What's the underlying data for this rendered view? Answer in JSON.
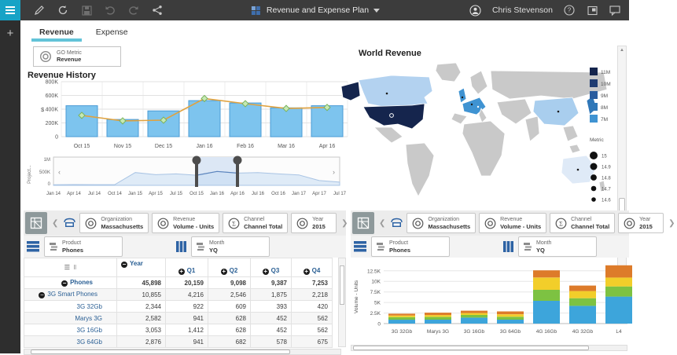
{
  "topbar": {
    "title": "Revenue and Expense Plan",
    "user_name": "Chris Stevenson",
    "icons": [
      "menu-icon",
      "edit-pencil-icon",
      "refresh-icon",
      "save-icon",
      "undo-icon",
      "redo-icon",
      "share-icon",
      "grid-icon",
      "caret-down-icon",
      "avatar-icon",
      "help-icon",
      "panel-icon",
      "chat-icon"
    ]
  },
  "rail": {
    "add_label": "+"
  },
  "tabs": [
    {
      "label": "Revenue",
      "active": true
    },
    {
      "label": "Expense",
      "active": false
    }
  ],
  "go_metric": {
    "label": "GO Metric",
    "value": "Revenue"
  },
  "world_map": {
    "title": "World Revenue",
    "legend": [
      {
        "label": "11M",
        "color": "#15254d"
      },
      {
        "label": "10M",
        "color": "#1f3c72"
      },
      {
        "label": "9M",
        "color": "#2a5d9f"
      },
      {
        "label": "8M",
        "color": "#2f77b8"
      },
      {
        "label": "7M",
        "color": "#3f93d2"
      }
    ],
    "metric_label": "Metric",
    "metric_dots": [
      "15",
      "14.9",
      "14.8",
      "14.7",
      "14.6"
    ],
    "region_colors": {
      "usa": "#15254d",
      "alaska": "#15254d",
      "canada": "#b3d2f0",
      "europe_highlight": "#3f93d2",
      "china": "#a9ceee",
      "japan": "#2f77b8",
      "australia": "#dfeaf7",
      "land": "#c9c9c9"
    }
  },
  "explorer": {
    "context_chips": [
      {
        "icon": "circle",
        "label": "Organization",
        "value": "Massachusetts"
      },
      {
        "icon": "circle",
        "label": "Revenue",
        "value": "Volume - Units"
      },
      {
        "icon": "sigma",
        "label": "Channel",
        "value": "Channel Total"
      },
      {
        "icon": "circle",
        "label": "Year",
        "value": "2015"
      }
    ],
    "rows_chip": {
      "label": "Product",
      "value": "Phones"
    },
    "cols_chip": {
      "label": "Month",
      "value": "YQ"
    },
    "overflow_label": "..."
  },
  "table": {
    "corner_icons": [
      "rows-handle-icon",
      "drag-divider-icon"
    ],
    "columns": [
      {
        "label": "Year",
        "expander": "-"
      },
      {
        "label": "Q1",
        "expander": "+"
      },
      {
        "label": "Q2",
        "expander": "+"
      },
      {
        "label": "Q3",
        "expander": "+"
      },
      {
        "label": "Q4",
        "expander": "+"
      }
    ],
    "rows": [
      {
        "name": "Phones",
        "level": 0,
        "expander": "-",
        "bold": true,
        "values": [
          "45,898",
          "20,159",
          "9,098",
          "9,387",
          "7,253"
        ]
      },
      {
        "name": "3G Smart Phones",
        "level": 1,
        "expander": "-",
        "bold": false,
        "values": [
          "10,855",
          "4,216",
          "2,546",
          "1,875",
          "2,218"
        ]
      },
      {
        "name": "3G 32Gb",
        "level": 2,
        "expander": "",
        "bold": false,
        "values": [
          "2,344",
          "922",
          "609",
          "393",
          "420"
        ]
      },
      {
        "name": "Marys 3G",
        "level": 2,
        "expander": "",
        "bold": false,
        "values": [
          "2,582",
          "941",
          "628",
          "452",
          "562"
        ]
      },
      {
        "name": "3G 16Gb",
        "level": 2,
        "expander": "",
        "bold": false,
        "values": [
          "3,053",
          "1,412",
          "628",
          "452",
          "562"
        ]
      },
      {
        "name": "3G 64Gb",
        "level": 2,
        "expander": "",
        "bold": false,
        "values": [
          "2,876",
          "941",
          "682",
          "578",
          "675"
        ]
      }
    ]
  },
  "chart_data": [
    {
      "id": "revenue_history",
      "type": "bar",
      "title": "Revenue History",
      "xlabel": "",
      "ylabel": "$",
      "categories": [
        "Oct 15",
        "Nov 15",
        "Dec 15",
        "Jan 16",
        "Feb 16",
        "Mar 16",
        "Apr 16"
      ],
      "yticks": [
        "0",
        "200K",
        "400K",
        "600K",
        "800K"
      ],
      "ylim": [
        0,
        800000
      ],
      "grid": true,
      "series": [
        {
          "name": "Revenue",
          "type": "bar",
          "color": "#7dc4ee",
          "stroke": "#4a9bd5",
          "values": [
            450000,
            250000,
            375000,
            525000,
            490000,
            420000,
            450000
          ]
        },
        {
          "name": "GO Metric",
          "type": "line",
          "color": "#e0a23f",
          "marker": "#c6e9b4",
          "values": [
            310000,
            230000,
            240000,
            555000,
            480000,
            410000,
            425000
          ]
        }
      ]
    },
    {
      "id": "time_slider",
      "type": "area",
      "title": "",
      "xlabel": "",
      "ylabel": "Project...",
      "yticks": [
        "0",
        "500K",
        "1M"
      ],
      "ylim": [
        0,
        1000000
      ],
      "x": [
        "Jan 14",
        "Apr 14",
        "Jul 14",
        "Oct 14",
        "Jan 15",
        "Apr 15",
        "Jul 15",
        "Oct 15",
        "Jan 16",
        "Apr 16",
        "Jul 16",
        "Oct 16",
        "Jan 17",
        "Apr 17",
        "Jul 17"
      ],
      "values": [
        20000,
        30000,
        25000,
        30000,
        480000,
        400000,
        430000,
        380000,
        520000,
        460000,
        480000,
        430000,
        390000,
        180000,
        120000
      ],
      "selection": [
        "Oct 15",
        "Apr 16"
      ],
      "color": "#aecdf0"
    },
    {
      "id": "volume_by_product",
      "type": "bar",
      "stacked": true,
      "title": "",
      "xlabel": "",
      "ylabel": "Volume - Units",
      "yticks": [
        "0",
        "2.5K",
        "5K",
        "7.5K",
        "10K",
        "12.5K"
      ],
      "ylim": [
        0,
        14500
      ],
      "categories": [
        "3G 32Gb",
        "Marys 3G",
        "3G 16Gb",
        "3G 64Gb",
        "4G 16Gb",
        "4G 32Gb",
        "L4"
      ],
      "series": [
        {
          "name": "Q1",
          "color": "#3da5db",
          "values": [
            922,
            941,
            1412,
            941,
            5400,
            4200,
            6400
          ]
        },
        {
          "name": "Q2",
          "color": "#7dc242",
          "values": [
            609,
            628,
            628,
            682,
            2600,
            1800,
            2400
          ]
        },
        {
          "name": "Q3",
          "color": "#f2ce2a",
          "values": [
            393,
            452,
            452,
            578,
            2900,
            1700,
            2100
          ]
        },
        {
          "name": "Q4",
          "color": "#dd7b2a",
          "values": [
            420,
            562,
            562,
            675,
            1700,
            1300,
            2900
          ]
        }
      ]
    }
  ]
}
